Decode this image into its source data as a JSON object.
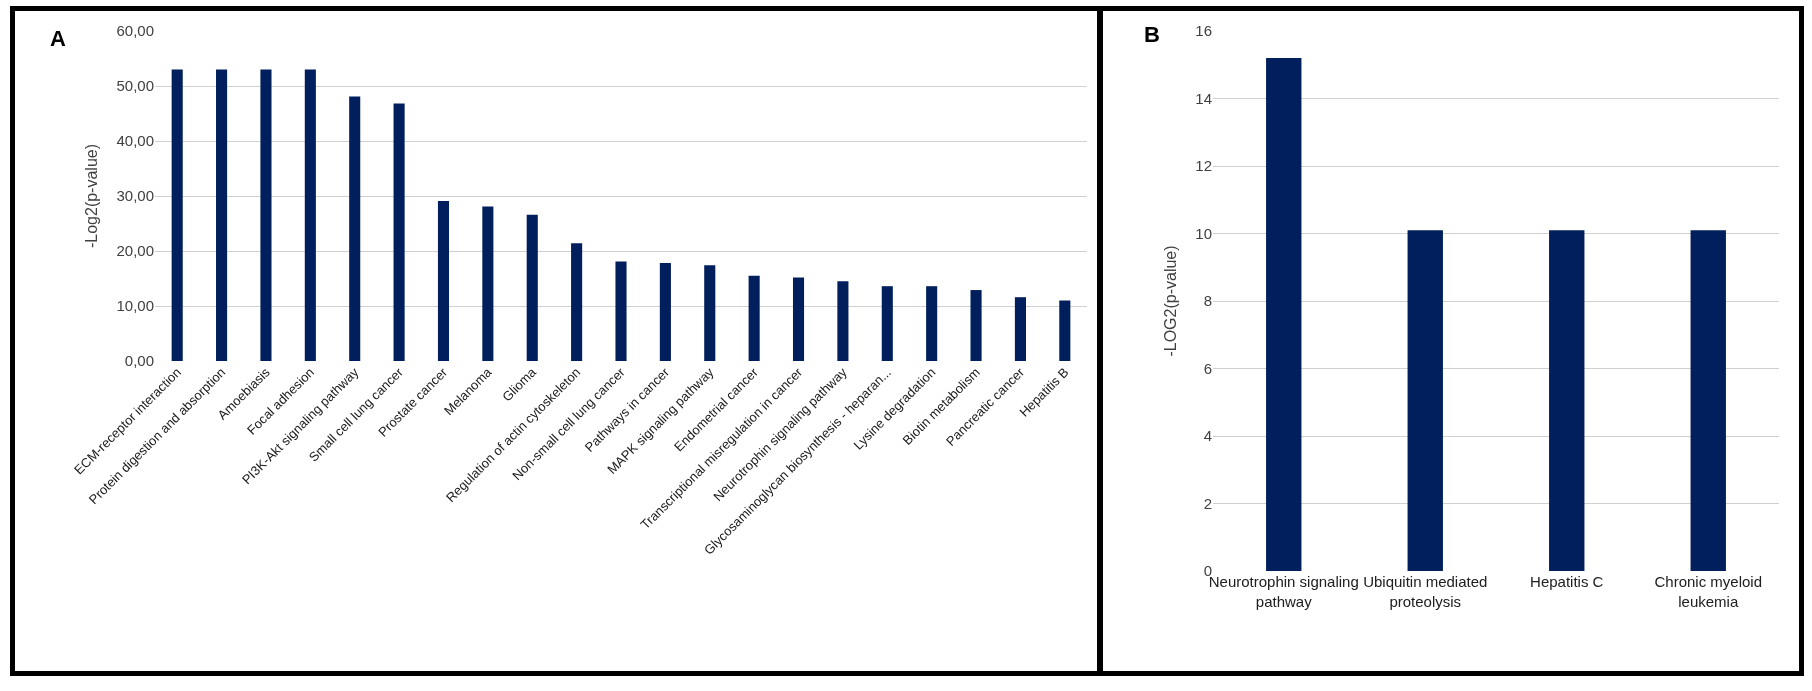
{
  "chart_data": [
    {
      "type": "bar",
      "ylabel": "-Log2(p-value)",
      "annotations": [
        "A"
      ],
      "categories": [
        "ECM-receptor interaction",
        "Protein digestion and absorption",
        "Amoebiasis",
        "Focal adhesion",
        "PI3K-Akt signaling pathway",
        "Small cell lung cancer",
        "Prostate cancer",
        "Melanoma",
        "Glioma",
        "Regulation of actin cytoskeleton",
        "Non-small cell lung cancer",
        "Pathways in cancer",
        "MAPK signaling pathway",
        "Endometrial cancer",
        "Transcriptional misregulation in cancer",
        "Neurotrophin signaling pathway",
        "Glycosaminoglycan biosynthesis - heparan...",
        "Lysine degradation",
        "Biotin metabolism",
        "Pancreatic cancer",
        "Hepatitis B"
      ],
      "values": [
        53,
        53,
        53,
        53,
        48.1,
        46.8,
        29.1,
        28.1,
        26.6,
        21.4,
        18.1,
        17.8,
        17.4,
        15.5,
        15.2,
        14.5,
        13.6,
        13.6,
        12.9,
        11.6,
        11.0
      ],
      "color": "#001f5c",
      "ylim": [
        0,
        60
      ],
      "yticks": [
        {
          "value": 0,
          "label": "0,00"
        },
        {
          "value": 10,
          "label": "10,00"
        },
        {
          "value": 20,
          "label": "20,00"
        },
        {
          "value": 30,
          "label": "30,00"
        },
        {
          "value": 40,
          "label": "40,00"
        },
        {
          "value": 50,
          "label": "50,00"
        },
        {
          "value": 60,
          "label": "60,00"
        }
      ],
      "grid": "y",
      "legend": false
    },
    {
      "type": "bar",
      "ylabel": "-LOG2(p-value)",
      "annotations": [
        "B"
      ],
      "categories": [
        "Neurotrophin signaling pathway",
        "Ubiquitin mediated proteolysis",
        "Hepatitis C",
        "Chronic myeloid leukemia"
      ],
      "values": [
        15.2,
        10.1,
        10.1,
        10.1
      ],
      "color": "#001f5c",
      "ylim": [
        0,
        16
      ],
      "yticks": [
        0,
        2,
        4,
        6,
        8,
        10,
        12,
        14,
        16
      ],
      "grid": "y",
      "legend": false
    }
  ]
}
